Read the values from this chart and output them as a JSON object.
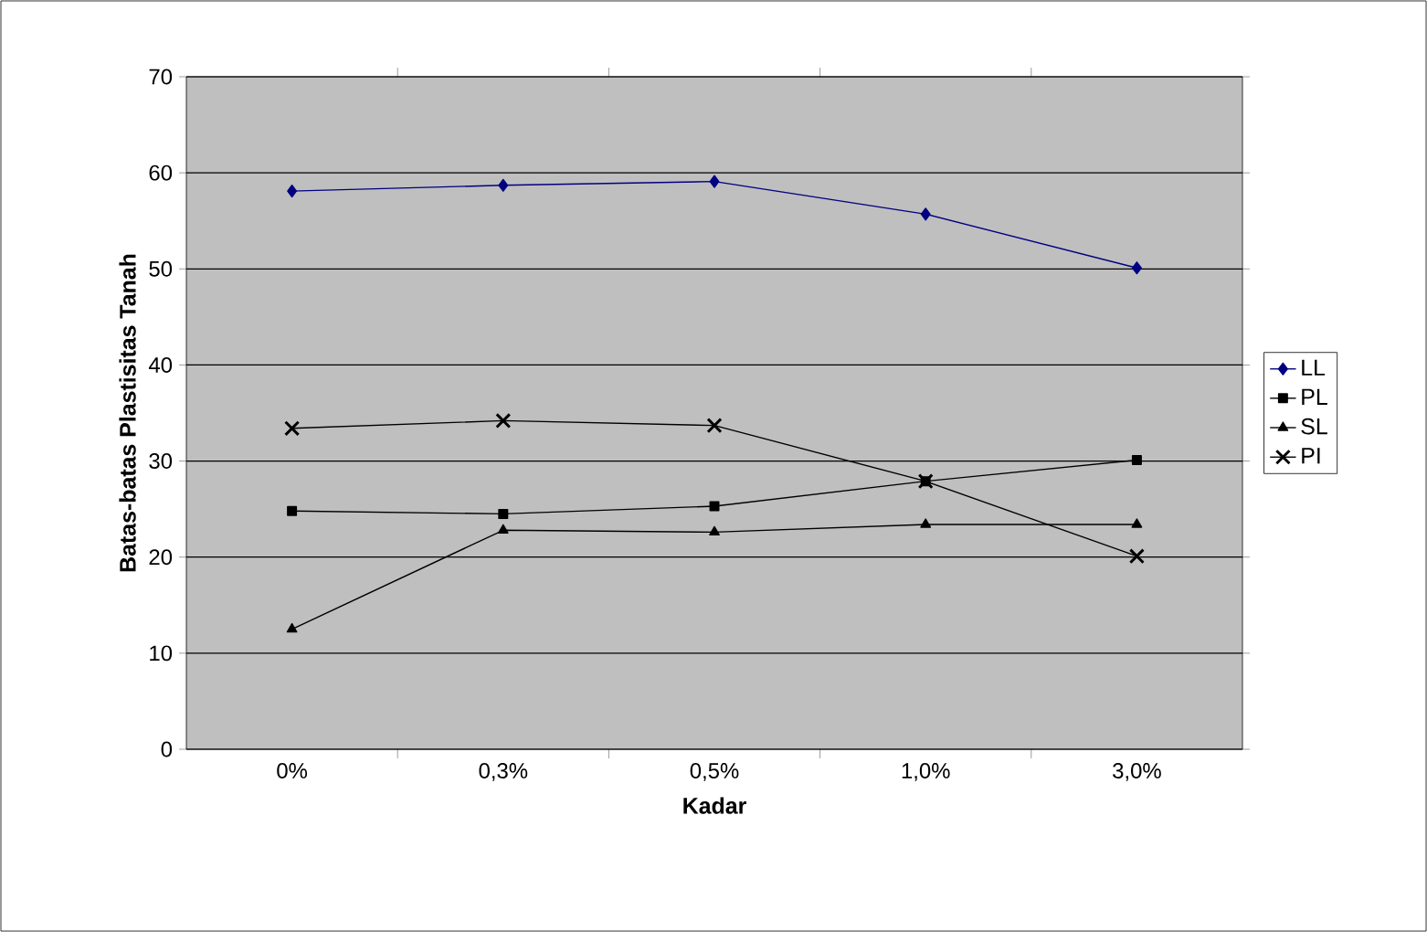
{
  "chart_data": {
    "type": "line",
    "xlabel": "Kadar",
    "ylabel": "Batas-batas Plastisitas Tanah",
    "categories": [
      "0%",
      "0,3%",
      "0,5%",
      "1,0%",
      "3,0%"
    ],
    "series": [
      {
        "name": "LL",
        "color": "#000080",
        "marker": "diamond",
        "values": [
          58.1,
          58.7,
          59.1,
          55.7,
          50.1
        ]
      },
      {
        "name": "PL",
        "color": "#000000",
        "marker": "square",
        "values": [
          24.8,
          24.5,
          25.3,
          27.9,
          30.1
        ]
      },
      {
        "name": "SL",
        "color": "#000000",
        "marker": "triangle",
        "values": [
          12.5,
          22.8,
          22.6,
          23.4,
          23.4
        ]
      },
      {
        "name": "PI",
        "color": "#000000",
        "marker": "cross",
        "values": [
          33.4,
          34.2,
          33.7,
          27.9,
          20.1
        ]
      }
    ],
    "ylim": [
      0,
      70
    ],
    "yticks": [
      0,
      10,
      20,
      30,
      40,
      50,
      60,
      70
    ],
    "grid": "y",
    "legend": "right"
  }
}
